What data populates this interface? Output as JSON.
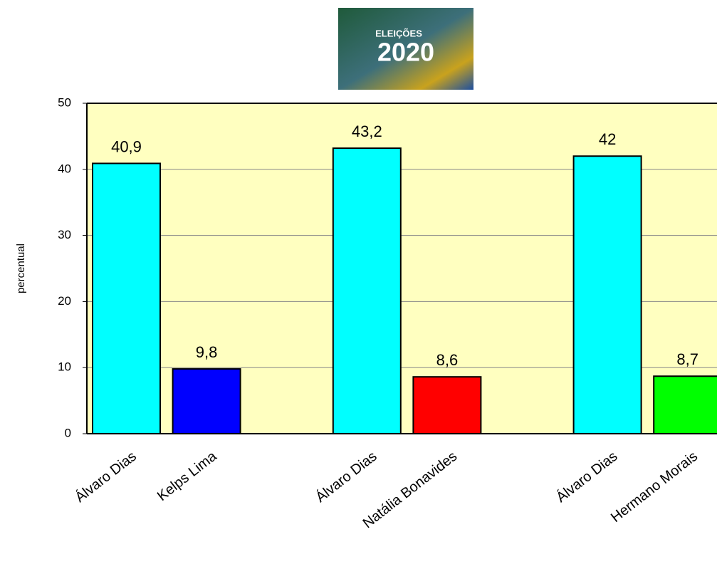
{
  "logo": {
    "line1": "ELEIÇÕES",
    "line2": "2020"
  },
  "chart_data": {
    "type": "bar",
    "categories": [
      "Álvaro Dias",
      "Kelps Lima",
      "Álvaro Dias",
      "Natália Bonavides",
      "Álvaro Dias",
      "Hermano Morais"
    ],
    "values": [
      40.9,
      9.8,
      43.2,
      8.6,
      42,
      8.7
    ],
    "value_labels": [
      "40,9",
      "9,8",
      "43,2",
      "8,6",
      "42",
      "8,7"
    ],
    "colors": [
      "#00ffff",
      "#0000ff",
      "#00ffff",
      "#ff0000",
      "#00ffff",
      "#00ff00"
    ],
    "y_label": "percentual",
    "ylim": [
      0,
      50
    ],
    "yticks": [
      0,
      10,
      20,
      30,
      40,
      50
    ],
    "grid": true
  }
}
